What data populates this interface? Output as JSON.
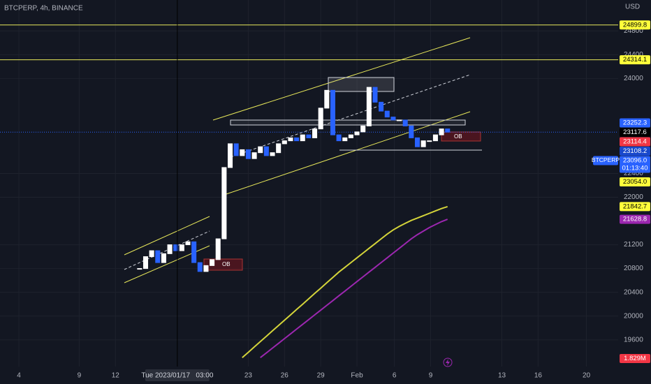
{
  "chart_data": {
    "type": "candlestick",
    "title": "BTCPERP, 4h, BINANCE",
    "y_unit": "USD",
    "up_color": "#ffffff",
    "down_color": "#2962ff",
    "x": [
      14,
      14.5,
      15,
      15.5,
      16,
      16.5,
      17,
      17.5,
      18,
      18.5,
      19,
      19.5,
      20,
      20.5,
      21,
      21.5,
      22,
      22.5,
      23,
      23.5,
      24,
      24.5,
      25,
      25.5,
      26,
      26.5,
      27,
      27.5,
      28,
      28.5,
      29,
      29.5,
      30,
      30.5,
      31,
      31.5,
      32,
      32.5,
      33,
      33.5,
      34,
      34.5,
      35,
      35.5,
      36,
      36.5,
      37,
      37.5,
      38,
      38.5,
      39,
      39.5
    ],
    "close": [
      20800,
      21000,
      21100,
      20900,
      21050,
      21200,
      21100,
      21200,
      21250,
      20900,
      20750,
      20850,
      20950,
      21300,
      22500,
      22900,
      22700,
      22800,
      22650,
      22750,
      22850,
      22700,
      22750,
      22900,
      22950,
      23000,
      22950,
      23050,
      23000,
      23150,
      23500,
      23800,
      23050,
      22950,
      23000,
      23050,
      23100,
      23200,
      23850,
      23600,
      23450,
      23350,
      23300,
      23300,
      23200,
      23000,
      22850,
      22950,
      22950,
      23050,
      23150,
      23096
    ],
    "overlays": [
      {
        "color": "#d4d43a",
        "values": [
          null,
          null,
          null,
          null,
          null,
          null,
          null,
          null,
          null,
          null,
          null,
          null,
          null,
          null,
          null,
          null,
          null,
          19300,
          19390,
          19480,
          19570,
          19660,
          19750,
          19840,
          19930,
          20020,
          20110,
          20200,
          20290,
          20380,
          20470,
          20560,
          20650,
          20740,
          20820,
          20900,
          20980,
          21060,
          21140,
          21220,
          21300,
          21380,
          21450,
          21510,
          21560,
          21610,
          21650,
          21690,
          21730,
          21770,
          21810,
          21842.7
        ]
      },
      {
        "color": "#9c27b0",
        "values": [
          null,
          null,
          null,
          null,
          null,
          null,
          null,
          null,
          null,
          null,
          null,
          null,
          null,
          null,
          null,
          null,
          null,
          null,
          null,
          null,
          19300,
          19380,
          19460,
          19540,
          19620,
          19700,
          19780,
          19860,
          19940,
          20020,
          20100,
          20180,
          20260,
          20340,
          20420,
          20500,
          20580,
          20660,
          20740,
          20820,
          20900,
          20980,
          21060,
          21140,
          21220,
          21300,
          21370,
          21430,
          21490,
          21540,
          21590,
          21628.8
        ]
      }
    ],
    "xlim": [
      2.44,
      53.63
    ],
    "ylim": [
      19150,
      25320
    ],
    "xticks": [
      4,
      9,
      12,
      23,
      26,
      29,
      {
        "value": 32,
        "label": "Feb"
      },
      {
        "value": 35.1,
        "label": "6"
      },
      {
        "value": 38.1,
        "label": "9"
      },
      {
        "value": 44,
        "label": "13"
      },
      {
        "value": 47,
        "label": "16"
      },
      {
        "value": 51,
        "label": "20"
      }
    ],
    "yticks": [
      19600,
      20000,
      20400,
      20800,
      21200,
      22000,
      22400,
      24000,
      24400,
      24800
    ],
    "grid": true,
    "levels": [
      {
        "value": 24899.8,
        "color": "#e8e85a"
      },
      {
        "value": 24314.1,
        "color": "#e8e85a"
      }
    ],
    "price_tags": [
      {
        "value": 24899.8,
        "label": "24899.8",
        "color": "#ffff3b"
      },
      {
        "value": 24314.1,
        "label": "24314.1",
        "color": "#ffff3b"
      },
      {
        "value": 23252.3,
        "label": "23252.3",
        "color": "#2962ff"
      },
      {
        "value": 23117.6,
        "label": "23117.6",
        "color": "#000000"
      },
      {
        "value": 23114.4,
        "label": "23114.4",
        "color": "#f23645"
      },
      {
        "value": 23108.2,
        "label": "23108.2",
        "color": "#1848cc"
      },
      {
        "value": 23095.6,
        "label": "23095.6",
        "color": "#089981"
      },
      {
        "value": 23054,
        "label": "23054.0",
        "color": "#ffff3b"
      },
      {
        "value": 21842.7,
        "label": "21842.7",
        "color": "#ffff3b"
      },
      {
        "value": 21628.8,
        "label": "21628.8",
        "color": "#9c27b0"
      }
    ],
    "last_price": {
      "symbol": "BTCPERP",
      "value": 23096,
      "label": "23096.0",
      "countdown": "01:13:40",
      "color": "#2962ff"
    },
    "volume_tag": {
      "value": 1829000,
      "label": "1.829M",
      "color": "#f23645"
    },
    "crosshair": {
      "x": 17.125,
      "label": "Tue 2023/01/17   03:00"
    },
    "annotations": [
      "OB",
      "OB"
    ]
  }
}
